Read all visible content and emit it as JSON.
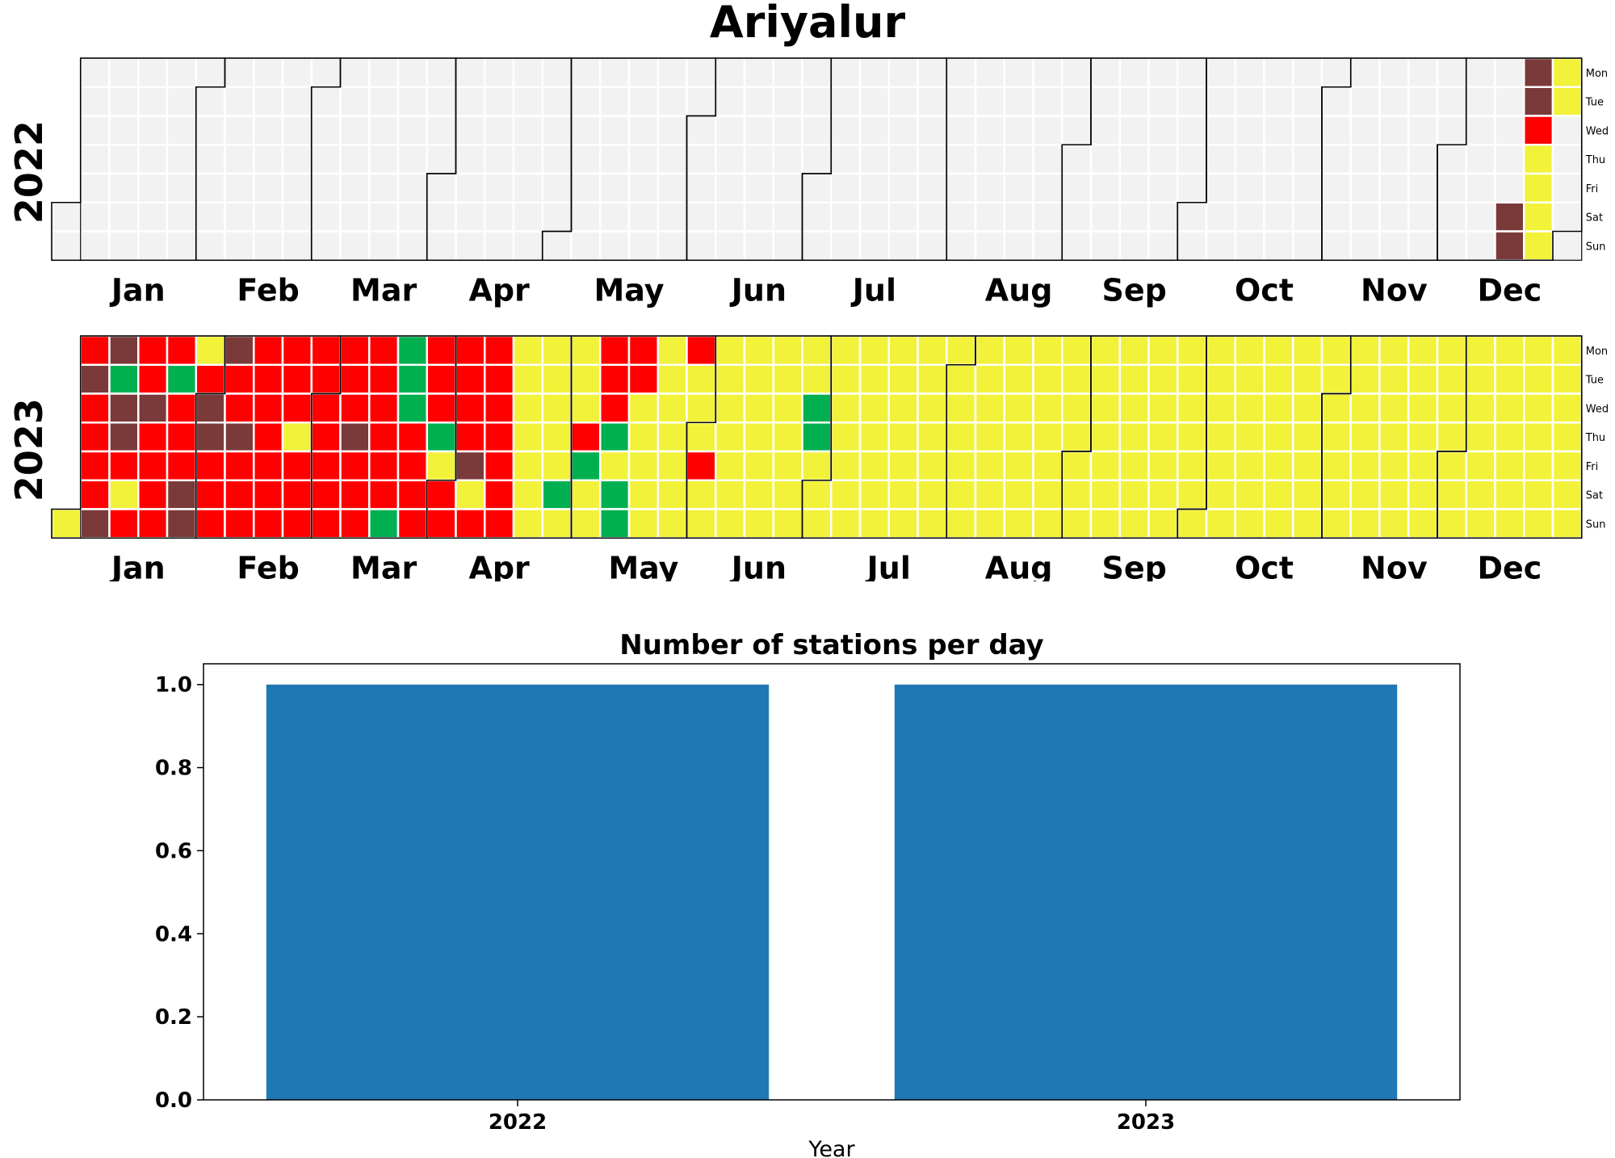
{
  "title": "Ariyalur",
  "colors": {
    "empty": "#f2f2f2",
    "cell_border": "#ffffff",
    "month_border": "#000000",
    "bar": "#1f77b4",
    "scale": {
      "yellow": "#f2f23a",
      "green": "#00b050",
      "red": "#ff0000",
      "maroon": "#7b3a3a"
    }
  },
  "chart_data": [
    {
      "type": "heatmap",
      "title": "Ariyalur",
      "subtype": "calendar",
      "years": [
        {
          "year": "2022",
          "months": [
            "Jan",
            "Feb",
            "Mar",
            "Apr",
            "May",
            "Jun",
            "Jul",
            "Aug",
            "Sep",
            "Oct",
            "Nov",
            "Dec"
          ],
          "weekdays": [
            "Mon",
            "Tue",
            "Wed",
            "Thu",
            "Fri",
            "Sat",
            "Sun"
          ],
          "days": "ooooooooooooooooooooooooooooooooooooooooooooooooooooooooooooooooooooooooooooooooooooooooooooooooooooooooooooooooooooooooooooooooooooooooooooooooooooooooooooooooooooooooooooooooooooooooooooooooooooooooooooooooooooooooooooooooooooooooooooooooooooooooooooooooooooooooooooooooooooooooooooooooooooooooooooooooooooooooooooooooooooooooooooooooooooooooooooooMMMMRyyyyyy",
          "legend_codes": {
            "o": "no data",
            "y": "yellow",
            "g": "green",
            "r": "red",
            "R": "red",
            "M": "maroon"
          }
        },
        {
          "year": "2023",
          "months": [
            "Jan",
            "Feb",
            "Mar",
            "Apr",
            "May",
            "Jun",
            "Jul",
            "Aug",
            "Sep",
            "Oct",
            "Nov",
            "Dec"
          ],
          "weekdays": [
            "Mon",
            "Tue",
            "Wed",
            "Thu",
            "Fri",
            "Sat",
            "Sun"
          ],
          "days": "yRMRRRRMMgMMRyRRRMRRRRRgRRRMMyRMMRRRMRRMRRRRRRRRRRRRRyRRRRRRRRRRRRRMRRRRRRRRRggggRRRRRRRgyRRRRRRMyRRRRRRRRyyyyyyyyyyyygyyyyRgyyRRRgyggRRyyyyyyyyyyyyRyyyRyyyyyyyyyyyyyyyyyyyyyyyyyggyyyyyyyyyyyyyyyyyyyyyyyyyyyyyyyyyyyyyyyyyyyyyyyyyyyyyyyyyyyyyyyyyyyyyyyyyyyyyyyyyyyyyyyyyyyyyyyyyyyyyyyyyyyyyyyyyyyyyyyyyyyyyyyyyyyyyyyyyyyyyyyyyyyyyyyyyyyyyyyyyyyyyyyyyyyyyyyyyyyyyyyyyyyyyyyyyyyyyyyyyyyyyyyyyyyyyyyyyyyyyyyyyyyyyyyyyyyyyyyyyyyyyyyyyyyyyyyyyy",
          "legend_codes": {
            "o": "no data",
            "y": "yellow",
            "g": "green",
            "r": "red",
            "R": "red",
            "M": "maroon"
          }
        }
      ]
    },
    {
      "type": "bar",
      "title": "Number of stations per day",
      "categories": [
        "2022",
        "2023"
      ],
      "values": [
        1,
        1
      ],
      "xlabel": "Year",
      "ylabel": "",
      "ylim": [
        0,
        1.05
      ],
      "yticks": [
        "0.0",
        "0.2",
        "0.4",
        "0.6",
        "0.8",
        "1.0"
      ],
      "grid": false
    }
  ]
}
